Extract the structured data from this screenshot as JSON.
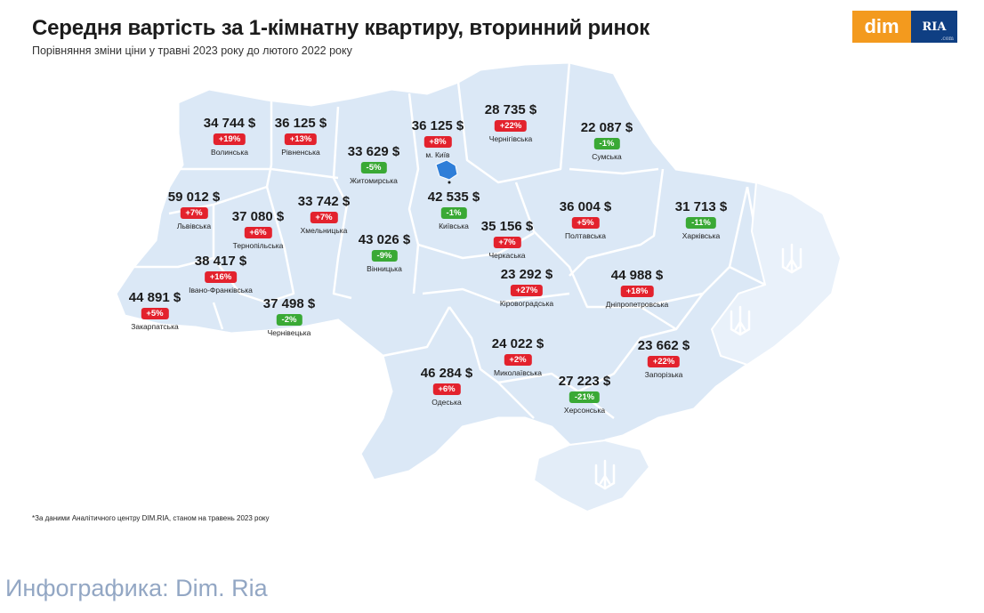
{
  "header": {
    "title": "Середня вартість за 1-кімнатну квартиру, вторинний ринок",
    "subtitle": "Порівняння зміни ціни у травні 2023 року до лютого 2022 року"
  },
  "logo": {
    "dim_text": "dim",
    "ria_text": "RIA",
    "ria_suffix": ".com"
  },
  "colors": {
    "map_fill": "#dbe8f6",
    "map_border": "#ffffff",
    "increase_badge": "#e3222d",
    "decrease_badge": "#3aa935",
    "caption_text": "#93a7c4",
    "logo_orange": "#f39a1e",
    "logo_blue": "#0f3f83"
  },
  "regions": [
    {
      "name": "Волинська",
      "price": "34 744 $",
      "change": "+19%",
      "direction": "up"
    },
    {
      "name": "Рівненська",
      "price": "36 125 $",
      "change": "+13%",
      "direction": "up"
    },
    {
      "name": "Житомирська",
      "price": "33 629 $",
      "change": "-5%",
      "direction": "down"
    },
    {
      "name": "м. Київ",
      "price": "36 125 $",
      "change": "+8%",
      "direction": "up"
    },
    {
      "name": "Чернігівська",
      "price": "28 735 $",
      "change": "+22%",
      "direction": "up"
    },
    {
      "name": "Сумська",
      "price": "22 087 $",
      "change": "-1%",
      "direction": "down"
    },
    {
      "name": "Львівська",
      "price": "59 012 $",
      "change": "+7%",
      "direction": "up"
    },
    {
      "name": "Тернопільська",
      "price": "37 080 $",
      "change": "+6%",
      "direction": "up"
    },
    {
      "name": "Хмельницька",
      "price": "33 742 $",
      "change": "+7%",
      "direction": "up"
    },
    {
      "name": "Київська",
      "price": "42 535 $",
      "change": "-1%",
      "direction": "down"
    },
    {
      "name": "Полтавська",
      "price": "36 004 $",
      "change": "+5%",
      "direction": "up"
    },
    {
      "name": "Харківська",
      "price": "31 713 $",
      "change": "-11%",
      "direction": "down"
    },
    {
      "name": "Черкаська",
      "price": "35 156 $",
      "change": "+7%",
      "direction": "up"
    },
    {
      "name": "Вінницька",
      "price": "43 026 $",
      "change": "-9%",
      "direction": "down"
    },
    {
      "name": "Івано-Франківська",
      "price": "38 417 $",
      "change": "+16%",
      "direction": "up"
    },
    {
      "name": "Кіровоградська",
      "price": "23 292 $",
      "change": "+27%",
      "direction": "up"
    },
    {
      "name": "Дніпропетровська",
      "price": "44 988 $",
      "change": "+18%",
      "direction": "up"
    },
    {
      "name": "Закарпатська",
      "price": "44 891 $",
      "change": "+5%",
      "direction": "up"
    },
    {
      "name": "Чернівецька",
      "price": "37 498 $",
      "change": "-2%",
      "direction": "down"
    },
    {
      "name": "Миколаївська",
      "price": "24 022 $",
      "change": "+2%",
      "direction": "up"
    },
    {
      "name": "Запорізька",
      "price": "23 662 $",
      "change": "+22%",
      "direction": "up"
    },
    {
      "name": "Одеська",
      "price": "46 284 $",
      "change": "+6%",
      "direction": "up"
    },
    {
      "name": "Херсонська",
      "price": "27 223 $",
      "change": "-21%",
      "direction": "down"
    }
  ],
  "footnote": "*За даними Аналітичного центру DIM.RIA, станом на травень 2023 року",
  "caption": "Инфографика: Dim. Ria"
}
